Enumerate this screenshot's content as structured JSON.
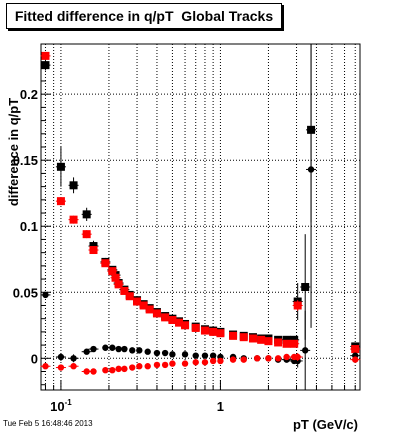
{
  "chart_data": {
    "type": "scatter",
    "title": "Fitted difference in q/pT  Global Tracks",
    "xlabel": "pT (GeV/c)",
    "ylabel": "difference in q/pT",
    "x_scale": "log",
    "xlim": [
      0.075,
      7.5
    ],
    "ylim": [
      -0.024,
      0.238
    ],
    "grid": true,
    "x_tick_labels": [
      {
        "value": 0.1,
        "base": "10",
        "exp": "-1"
      },
      {
        "value": 1,
        "base": "1",
        "exp": ""
      }
    ],
    "y_ticks": [
      0,
      0.05,
      0.1,
      0.15,
      0.2
    ],
    "y_tick_labels": [
      "0",
      "0.05",
      "0.1",
      "0.15",
      "0.2"
    ],
    "colors": {
      "black": "#000000",
      "red": "#ff0000",
      "grid": "#000000"
    },
    "series": [
      {
        "marker": "square",
        "color": "#000000",
        "points": [
          [
            0.08,
            0.222,
            0.004
          ],
          [
            0.1,
            0.145,
            0.015
          ],
          [
            0.12,
            0.131,
            0.006
          ],
          [
            0.145,
            0.109,
            0.005
          ],
          [
            0.16,
            0.085,
            0.004
          ],
          [
            0.19,
            0.073,
            0.003
          ],
          [
            0.21,
            0.067,
            0.002
          ],
          [
            0.22,
            0.063,
            0.002
          ],
          [
            0.23,
            0.057,
            0.002
          ],
          [
            0.25,
            0.052,
            0.002
          ],
          [
            0.27,
            0.048,
            0.001
          ],
          [
            0.3,
            0.044,
            0.001
          ],
          [
            0.33,
            0.041,
            0.001
          ],
          [
            0.36,
            0.038,
            0.001
          ],
          [
            0.4,
            0.035,
            0.001
          ],
          [
            0.45,
            0.032,
            0.001
          ],
          [
            0.5,
            0.03,
            0.001
          ],
          [
            0.55,
            0.028,
            0.001
          ],
          [
            0.6,
            0.026,
            0.001
          ],
          [
            0.7,
            0.024,
            0.001
          ],
          [
            0.8,
            0.022,
            0.001
          ],
          [
            0.9,
            0.021,
            0.001
          ],
          [
            1.0,
            0.02,
            0.001
          ],
          [
            1.2,
            0.018,
            0.001
          ],
          [
            1.4,
            0.017,
            0.001
          ],
          [
            1.6,
            0.016,
            0.001
          ],
          [
            1.8,
            0.015,
            0.001
          ],
          [
            2.0,
            0.015,
            0.001
          ],
          [
            2.3,
            0.014,
            0.001
          ],
          [
            2.6,
            0.014,
            0.002
          ],
          [
            2.9,
            0.014,
            0.002
          ],
          [
            3.05,
            0.043,
            0.014
          ],
          [
            3.4,
            0.054,
            0.04
          ],
          [
            3.7,
            0.173,
            0.07
          ],
          [
            7.0,
            0.009,
            0.002
          ]
        ]
      },
      {
        "marker": "square",
        "color": "#ff0000",
        "points": [
          [
            0.08,
            0.229,
            0.003
          ],
          [
            0.1,
            0.119,
            0.003
          ],
          [
            0.12,
            0.105,
            0.003
          ],
          [
            0.145,
            0.094,
            0.003
          ],
          [
            0.16,
            0.082,
            0.002
          ],
          [
            0.19,
            0.072,
            0.002
          ],
          [
            0.21,
            0.066,
            0.002
          ],
          [
            0.22,
            0.061,
            0.002
          ],
          [
            0.23,
            0.056,
            0.002
          ],
          [
            0.25,
            0.051,
            0.001
          ],
          [
            0.27,
            0.047,
            0.001
          ],
          [
            0.3,
            0.043,
            0.001
          ],
          [
            0.33,
            0.04,
            0.001
          ],
          [
            0.36,
            0.037,
            0.001
          ],
          [
            0.4,
            0.034,
            0.001
          ],
          [
            0.45,
            0.031,
            0.001
          ],
          [
            0.5,
            0.029,
            0.001
          ],
          [
            0.55,
            0.027,
            0.001
          ],
          [
            0.6,
            0.025,
            0.001
          ],
          [
            0.7,
            0.023,
            0.001
          ],
          [
            0.8,
            0.021,
            0.001
          ],
          [
            0.9,
            0.02,
            0.001
          ],
          [
            1.0,
            0.019,
            0.001
          ],
          [
            1.2,
            0.017,
            0.001
          ],
          [
            1.4,
            0.016,
            0.001
          ],
          [
            1.6,
            0.015,
            0.001
          ],
          [
            1.8,
            0.014,
            0.001
          ],
          [
            2.0,
            0.013,
            0.001
          ],
          [
            2.3,
            0.012,
            0.001
          ],
          [
            2.6,
            0.011,
            0.001
          ],
          [
            2.9,
            0.011,
            0.002
          ],
          [
            3.05,
            0.04,
            0.004
          ],
          [
            7.0,
            0.007,
            0.002
          ]
        ]
      },
      {
        "marker": "circle",
        "color": "#000000",
        "points": [
          [
            0.08,
            0.048,
            0.002
          ],
          [
            0.1,
            0.001,
            0.003
          ],
          [
            0.12,
            0.0,
            0.003
          ],
          [
            0.145,
            0.005,
            0.002
          ],
          [
            0.16,
            0.007,
            0.002
          ],
          [
            0.19,
            0.008,
            0.001
          ],
          [
            0.21,
            0.008,
            0.001
          ],
          [
            0.23,
            0.007,
            0.001
          ],
          [
            0.25,
            0.007,
            0.001
          ],
          [
            0.28,
            0.006,
            0.001
          ],
          [
            0.31,
            0.006,
            0.001
          ],
          [
            0.35,
            0.005,
            0.001
          ],
          [
            0.4,
            0.004,
            0.001
          ],
          [
            0.45,
            0.004,
            0.001
          ],
          [
            0.5,
            0.003,
            0.001
          ],
          [
            0.6,
            0.003,
            0.001
          ],
          [
            0.7,
            0.002,
            0.001
          ],
          [
            0.8,
            0.002,
            0.001
          ],
          [
            0.9,
            0.002,
            0.001
          ],
          [
            1.0,
            0.001,
            0.001
          ],
          [
            1.2,
            0.001,
            0.001
          ],
          [
            1.4,
            0.0,
            0.001
          ],
          [
            1.7,
            0.0,
            0.001
          ],
          [
            2.0,
            0.0,
            0.001
          ],
          [
            2.3,
            -0.001,
            0.001
          ],
          [
            2.6,
            -0.001,
            0.002
          ],
          [
            2.9,
            -0.002,
            0.002
          ],
          [
            3.05,
            -0.002,
            0.005
          ],
          [
            3.4,
            0.006,
            0.03
          ],
          [
            3.7,
            0.143,
            0.12
          ],
          [
            7.0,
            0.002,
            0.002
          ]
        ]
      },
      {
        "marker": "circle",
        "color": "#ff0000",
        "points": [
          [
            0.08,
            -0.006,
            0.002
          ],
          [
            0.1,
            -0.007,
            0.002
          ],
          [
            0.12,
            -0.006,
            0.002
          ],
          [
            0.145,
            -0.01,
            0.002
          ],
          [
            0.16,
            -0.01,
            0.001
          ],
          [
            0.19,
            -0.009,
            0.001
          ],
          [
            0.21,
            -0.009,
            0.001
          ],
          [
            0.23,
            -0.008,
            0.001
          ],
          [
            0.25,
            -0.008,
            0.001
          ],
          [
            0.28,
            -0.007,
            0.001
          ],
          [
            0.31,
            -0.006,
            0.001
          ],
          [
            0.35,
            -0.006,
            0.001
          ],
          [
            0.4,
            -0.005,
            0.001
          ],
          [
            0.45,
            -0.005,
            0.001
          ],
          [
            0.5,
            -0.004,
            0.001
          ],
          [
            0.6,
            -0.004,
            0.001
          ],
          [
            0.7,
            -0.003,
            0.001
          ],
          [
            0.8,
            -0.003,
            0.001
          ],
          [
            0.9,
            -0.002,
            0.001
          ],
          [
            1.0,
            -0.002,
            0.001
          ],
          [
            1.2,
            -0.001,
            0.001
          ],
          [
            1.4,
            -0.001,
            0.001
          ],
          [
            1.7,
            0.0,
            0.001
          ],
          [
            2.0,
            0.0,
            0.001
          ],
          [
            2.3,
            0.0,
            0.001
          ],
          [
            2.6,
            0.001,
            0.001
          ],
          [
            2.9,
            0.001,
            0.002
          ],
          [
            3.05,
            0.001,
            0.003
          ],
          [
            7.0,
            -0.001,
            0.002
          ]
        ]
      }
    ]
  },
  "timestamp": "Tue Feb  5 16:48:46 2013"
}
